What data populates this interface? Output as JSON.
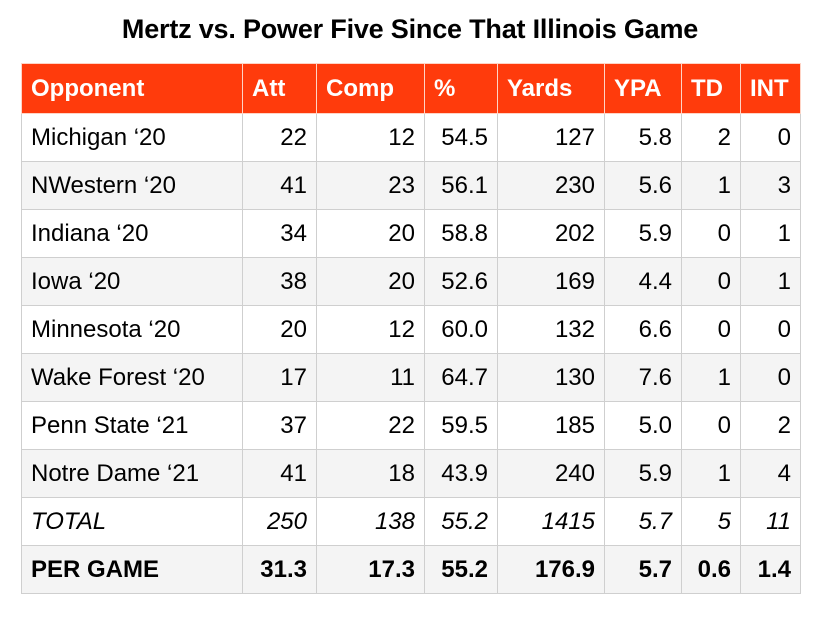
{
  "title": "Mertz vs. Power Five Since That Illinois Game",
  "table": {
    "headers": [
      "Opponent",
      "Att",
      "Comp",
      "%",
      "Yards",
      "YPA",
      "TD",
      "INT"
    ],
    "rows": [
      [
        "Michigan ‘20",
        "22",
        "12",
        "54.5",
        "127",
        "5.8",
        "2",
        "0"
      ],
      [
        "NWestern ‘20",
        "41",
        "23",
        "56.1",
        "230",
        "5.6",
        "1",
        "3"
      ],
      [
        "Indiana ‘20",
        "34",
        "20",
        "58.8",
        "202",
        "5.9",
        "0",
        "1"
      ],
      [
        "Iowa ‘20",
        "38",
        "20",
        "52.6",
        "169",
        "4.4",
        "0",
        "1"
      ],
      [
        "Minnesota ‘20",
        "20",
        "12",
        "60.0",
        "132",
        "6.6",
        "0",
        "0"
      ],
      [
        "Wake Forest ‘20",
        "17",
        "11",
        "64.7",
        "130",
        "7.6",
        "1",
        "0"
      ],
      [
        "Penn State ‘21",
        "37",
        "22",
        "59.5",
        "185",
        "5.0",
        "0",
        "2"
      ],
      [
        "Notre Dame ‘21",
        "41",
        "18",
        "43.9",
        "240",
        "5.9",
        "1",
        "4"
      ]
    ],
    "total": [
      "TOTAL",
      "250",
      "138",
      "55.2",
      "1415",
      "5.7",
      "5",
      "11"
    ],
    "per_game": [
      "PER GAME",
      "31.3",
      "17.3",
      "55.2",
      "176.9",
      "5.7",
      "0.6",
      "1.4"
    ]
  },
  "colors": {
    "header_background": "#ff3b0c",
    "header_text": "#ffffff",
    "stripe": "#f4f4f4"
  }
}
